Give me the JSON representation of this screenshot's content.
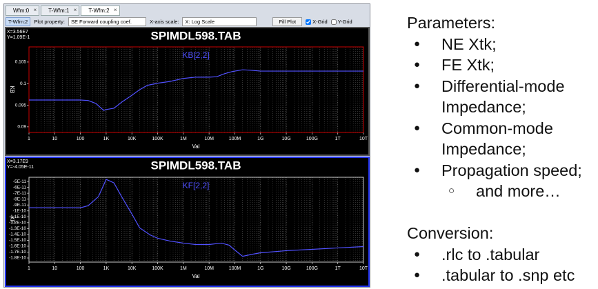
{
  "window": {
    "tabs": [
      "Wfm:0",
      "T-Wfm:1",
      "T-Wfm:2"
    ],
    "active_tab": 2,
    "toolbar": {
      "active_wfm": "T-Wfm:2",
      "plot_property_label": "Plot property:",
      "plot_property": "SE Forward  coupling coef.",
      "x_scale_label": "X-axis scale:",
      "x_scale": "X: Log Scale",
      "fill_button": "Fill Plot",
      "x_grid_label": "X-Grid",
      "x_grid": true,
      "y_grid_label": "Y-Grid",
      "y_grid": false
    }
  },
  "chart_data": [
    {
      "type": "line",
      "title": "SPIMDL598.TAB",
      "cursor_x": "X=3.56E7",
      "cursor_y": "Y=1.09E-1",
      "x": [
        1,
        10,
        100,
        200,
        400,
        800,
        1000,
        2000,
        4000,
        10000,
        20000,
        40000,
        100000,
        300000,
        1000000,
        3000000,
        10000000,
        20000000,
        40000000,
        80000000,
        200000000,
        400000000,
        1000000000,
        10000000000000
      ],
      "series": [
        {
          "name": "KB[2,2]",
          "color": "#5050ff",
          "values": [
            0.0962,
            0.0962,
            0.0962,
            0.0961,
            0.0954,
            0.0938,
            0.094,
            0.0943,
            0.0957,
            0.0973,
            0.0986,
            0.0996,
            0.1001,
            0.1005,
            0.1012,
            0.1015,
            0.1015,
            0.1016,
            0.1023,
            0.1028,
            0.1032,
            0.1031,
            0.1029,
            0.1029
          ]
        }
      ],
      "log_x": true,
      "xlim": [
        1,
        10000000000000
      ],
      "xticks": [
        1,
        10,
        100,
        {
          "value": 1000,
          "label": "1K"
        },
        {
          "value": 10000,
          "label": "10K"
        },
        {
          "value": 100000,
          "label": "100K"
        },
        {
          "value": 1000000,
          "label": "1M"
        },
        {
          "value": 10000000,
          "label": "10M"
        },
        {
          "value": 100000000,
          "label": "100M"
        },
        {
          "value": 1000000000,
          "label": "1G"
        },
        {
          "value": 10000000000,
          "label": "10G"
        },
        {
          "value": 100000000000,
          "label": "100G"
        },
        {
          "value": 1000000000000,
          "label": "1T"
        },
        {
          "value": 10000000000000,
          "label": "10T"
        }
      ],
      "x_label": "Val",
      "y_label": "KB",
      "ylim": [
        0.0887,
        0.1085
      ],
      "yticks": [
        0.09,
        0.095,
        0.1,
        0.105
      ],
      "frame_color": "#cc0000"
    },
    {
      "type": "line",
      "title": "SPIMDL598.TAB",
      "cursor_x": "X=3.17E9",
      "cursor_y": "Y=-4.05E-11",
      "x": [
        1,
        10,
        100,
        200,
        500,
        1000,
        2000,
        4000,
        10000,
        20000,
        50000,
        100000,
        300000,
        1000000,
        3000000,
        10000000,
        30000000,
        60000000,
        100000000,
        200000000,
        500000000,
        1000000000,
        10000000000,
        100000000000,
        1000000000000,
        10000000000000
      ],
      "series": [
        {
          "name": "KF[2,2]",
          "color": "#5050ff",
          "values": [
            -9.47e-11,
            -9.47e-11,
            -9.47e-11,
            -9.12e-11,
            -7.59e-11,
            -4.65e-11,
            -5.24e-11,
            -7.59e-11,
            -1.053e-10,
            -1.288e-10,
            -1.406e-10,
            -1.465e-10,
            -1.512e-10,
            -1.547e-10,
            -1.571e-10,
            -1.571e-10,
            -1.547e-10,
            -1.582e-10,
            -1.665e-10,
            -1.771e-10,
            -1.735e-10,
            -1.712e-10,
            -1.676e-10,
            -1.653e-10,
            -1.629e-10,
            -1.606e-10
          ]
        }
      ],
      "log_x": true,
      "xlim": [
        1,
        10000000000000
      ],
      "xticks": [
        1,
        10,
        100,
        {
          "value": 1000,
          "label": "1K"
        },
        {
          "value": 10000,
          "label": "10K"
        },
        {
          "value": 100000,
          "label": "100K"
        },
        {
          "value": 1000000,
          "label": "1M"
        },
        {
          "value": 10000000,
          "label": "10M"
        },
        {
          "value": 100000000,
          "label": "100M"
        },
        {
          "value": 1000000000,
          "label": "1G"
        },
        {
          "value": 10000000000,
          "label": "10G"
        },
        {
          "value": 100000000000,
          "label": "100G"
        },
        {
          "value": 1000000000000,
          "label": "1T"
        },
        {
          "value": 10000000000000,
          "label": "10T"
        }
      ],
      "x_label": "Val",
      "y_label": "KF",
      "ylim": [
        -1.87e-10,
        -4.29e-11
      ],
      "yticks": [
        {
          "value": -5e-11,
          "label": "-5E-11"
        },
        {
          "value": -6e-11,
          "label": "-6E-11"
        },
        {
          "value": -7e-11,
          "label": "-7E-11"
        },
        {
          "value": -8e-11,
          "label": "-8E-11"
        },
        {
          "value": -9e-11,
          "label": "-9E-11"
        },
        {
          "value": -1e-10,
          "label": "-1E-10"
        },
        {
          "value": -1.1e-10,
          "label": "-1.1E-10"
        },
        {
          "value": -1.2e-10,
          "label": "-1.2E-10"
        },
        {
          "value": -1.3e-10,
          "label": "-1.3E-10"
        },
        {
          "value": -1.4e-10,
          "label": "-1.4E-10"
        },
        {
          "value": -1.5e-10,
          "label": "-1.5E-10"
        },
        {
          "value": -1.6e-10,
          "label": "-1.6E-10"
        },
        {
          "value": -1.7e-10,
          "label": "-1.7E-10"
        },
        {
          "value": -1.8e-10,
          "label": "-1.8E-10"
        }
      ],
      "frame_color": "#cccccc"
    }
  ],
  "slide": {
    "heading": "Parameters:",
    "items": [
      "NE Xtk;",
      "FE Xtk;",
      "Differential-mode Impedance;",
      "Common-mode Impedance;",
      "Propagation speed;"
    ],
    "sub_items": [
      "and more…"
    ],
    "conversion_heading": "Conversion:",
    "conversion_items": [
      ".rlc to .tabular",
      ".tabular to .snp etc"
    ]
  }
}
